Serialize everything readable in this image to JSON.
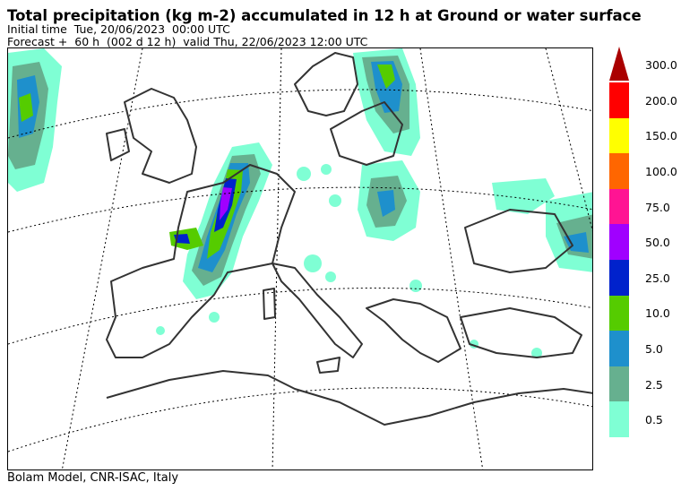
{
  "header": {
    "title": "Total precipitation (kg m-2) accumulated in  12 h at Ground or water surface",
    "initial_time": "Initial time  Tue, 20/06/2023  00:00 UTC",
    "forecast": "Forecast +  60 h  (002 d 12 h)  valid Thu, 22/06/2023 12:00 UTC"
  },
  "footer": {
    "credit": "Bolam Model, CNR-ISAC, Italy"
  },
  "legend": {
    "unit": "kg m-2",
    "classes": [
      {
        "label": "0.5",
        "color": "#7fffd4"
      },
      {
        "label": "2.5",
        "color": "#66b08f"
      },
      {
        "label": "5.0",
        "color": "#1e90cc"
      },
      {
        "label": "10.0",
        "color": "#55cc00"
      },
      {
        "label": "25.0",
        "color": "#0022cc"
      },
      {
        "label": "50.0",
        "color": "#a000ff"
      },
      {
        "label": "75.0",
        "color": "#ff1493"
      },
      {
        "label": "100.0",
        "color": "#ff6600"
      },
      {
        "label": "150.0",
        "color": "#ffff00"
      },
      {
        "label": "200.0",
        "color": "#ff0000"
      },
      {
        "label": "300.0",
        "color": "#aa0000"
      }
    ]
  }
}
